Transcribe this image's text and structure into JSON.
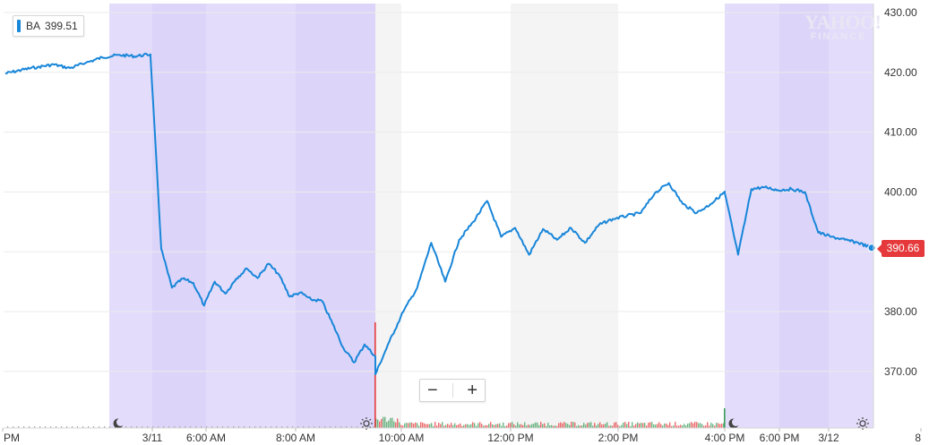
{
  "legend": {
    "symbol": "BA",
    "value": "399.51",
    "color": "#1886d9"
  },
  "last_price_label": "390.66",
  "zoom": {
    "minus": "−",
    "plus": "+"
  },
  "logo": {
    "line1": "YAHOO!",
    "line2": "FINANCE"
  },
  "colors": {
    "line": "#1886d9",
    "extended_hours": "#e3dcfb",
    "band": "#f4f4f4",
    "last_tag": "#e5393b",
    "volume_up": "#3c9c5a",
    "volume_down": "#e5393b"
  },
  "chart_data": {
    "type": "line",
    "series": [
      {
        "name": "BA",
        "points": [
          [
            "3/10 PM",
            419.8
          ],
          [
            "",
            420.4
          ],
          [
            "",
            420.9
          ],
          [
            "",
            421.3
          ],
          [
            "",
            420.7
          ],
          [
            "",
            421.6
          ],
          [
            "",
            422.5
          ],
          [
            "",
            422.9
          ],
          [
            "",
            422.7
          ],
          [
            "",
            423.0
          ],
          [
            "3/11 premarket",
            422.7
          ],
          [
            "",
            390.5
          ],
          [
            "",
            384.0
          ],
          [
            "",
            385.5
          ],
          [
            "",
            384.8
          ],
          [
            "",
            381.0
          ],
          [
            "",
            385.0
          ],
          [
            "",
            383.0
          ],
          [
            "",
            385.5
          ],
          [
            "",
            387.2
          ],
          [
            "",
            385.6
          ],
          [
            "",
            388.0
          ],
          [
            "",
            386.2
          ],
          [
            "",
            382.5
          ],
          [
            "",
            383.2
          ],
          [
            "",
            382.0
          ],
          [
            "",
            381.8
          ],
          [
            "",
            378.0
          ],
          [
            "",
            374.0
          ],
          [
            "",
            371.5
          ],
          [
            "",
            374.5
          ],
          [
            "",
            372.5
          ],
          [
            "3/11 regular",
            369.5
          ],
          [
            "",
            375.0
          ],
          [
            "",
            380.0
          ],
          [
            "",
            384.0
          ],
          [
            "",
            391.5
          ],
          [
            "",
            385.0
          ],
          [
            "",
            392.0
          ],
          [
            "",
            395.0
          ],
          [
            "",
            398.5
          ],
          [
            "",
            392.5
          ],
          [
            "",
            394.0
          ],
          [
            "",
            389.5
          ],
          [
            "",
            393.8
          ],
          [
            "",
            392.0
          ],
          [
            "",
            394.0
          ],
          [
            "",
            391.5
          ],
          [
            "",
            394.5
          ],
          [
            "",
            395.5
          ],
          [
            "",
            396.0
          ],
          [
            "",
            396.5
          ],
          [
            "",
            399.8
          ],
          [
            "",
            401.5
          ],
          [
            "",
            398.0
          ],
          [
            "",
            396.5
          ],
          [
            "",
            398.0
          ],
          [
            "",
            400.0
          ],
          [
            "3/11 after-hours",
            399.8
          ],
          [
            "",
            389.5
          ],
          [
            "",
            400.5
          ],
          [
            "",
            400.8
          ],
          [
            "",
            400.3
          ],
          [
            "",
            400.5
          ],
          [
            "",
            400.0
          ],
          [
            "",
            393.2
          ],
          [
            "",
            392.5
          ],
          [
            "",
            392.0
          ],
          [
            "",
            391.5
          ],
          [
            "",
            390.66
          ]
        ]
      }
    ],
    "x_tick_labels": [
      "PM",
      "3/11",
      "6:00 AM",
      "8:00 AM",
      "10:00 AM",
      "12:00 PM",
      "2:00 PM",
      "4:00 PM",
      "6:00 PM",
      "3/12",
      "8"
    ],
    "y_tick_labels": [
      "430.00",
      "420.00",
      "410.00",
      "400.00",
      "390.00",
      "380.00",
      "370.00"
    ],
    "ylim": [
      360.5,
      431.5
    ],
    "grid": true,
    "volume": true,
    "legend_position": "top-left"
  }
}
